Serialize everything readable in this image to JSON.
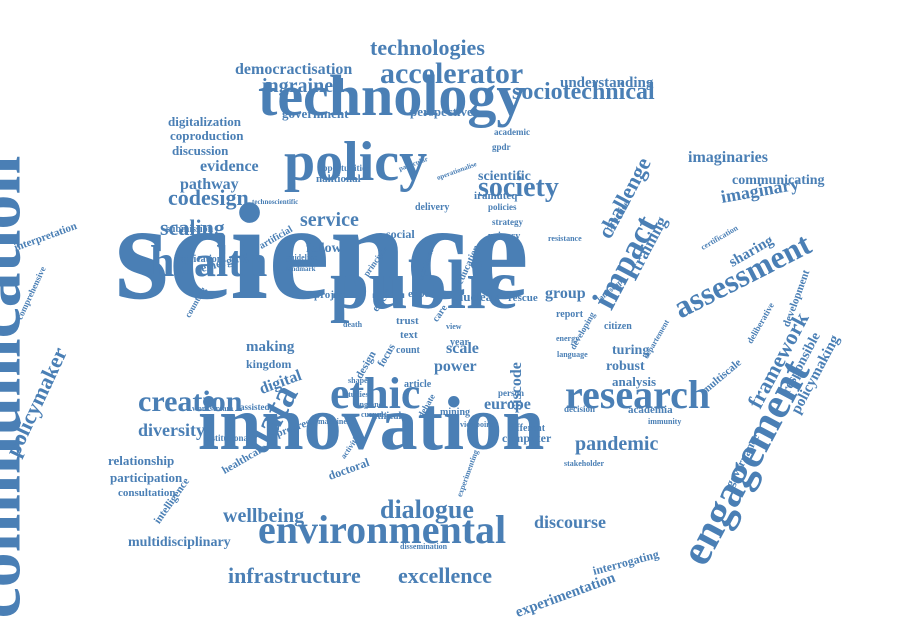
{
  "color": "#4a7fb5",
  "words": [
    {
      "text": "science"
    },
    {
      "text": "innovation"
    },
    {
      "text": "communication"
    },
    {
      "text": "public"
    },
    {
      "text": "technology"
    },
    {
      "text": "policy"
    },
    {
      "text": "engagement"
    },
    {
      "text": "health"
    },
    {
      "text": "ethic"
    },
    {
      "text": "research"
    },
    {
      "text": "environmental"
    },
    {
      "text": "data"
    },
    {
      "text": "assessment"
    },
    {
      "text": "impact"
    },
    {
      "text": "creation"
    },
    {
      "text": "society"
    },
    {
      "text": "accelerator"
    },
    {
      "text": "sociotechnical"
    },
    {
      "text": "technologies"
    },
    {
      "text": "dialogue"
    },
    {
      "text": "infrastructure"
    },
    {
      "text": "excellence"
    },
    {
      "text": "framework"
    },
    {
      "text": "policymaker"
    },
    {
      "text": "challenge"
    },
    {
      "text": "codesign"
    },
    {
      "text": "scaling"
    },
    {
      "text": "service"
    },
    {
      "text": "pandemic"
    },
    {
      "text": "diversity"
    },
    {
      "text": "wellbeing"
    },
    {
      "text": "ingrained"
    },
    {
      "text": "democractisation"
    },
    {
      "text": "evidence"
    },
    {
      "text": "pathway"
    },
    {
      "text": "training"
    },
    {
      "text": "imaginaries"
    },
    {
      "text": "imaginary"
    },
    {
      "text": "communicating"
    },
    {
      "text": "understanding"
    },
    {
      "text": "government"
    },
    {
      "text": "perspective"
    },
    {
      "text": "digitalization"
    },
    {
      "text": "coproduction"
    },
    {
      "text": "discussion"
    },
    {
      "text": "making"
    },
    {
      "text": "digital"
    },
    {
      "text": "kingdom"
    },
    {
      "text": "europe"
    },
    {
      "text": "discourse"
    },
    {
      "text": "experimentation"
    },
    {
      "text": "multidisciplinary"
    },
    {
      "text": "policymaking"
    },
    {
      "text": "responsible"
    },
    {
      "text": "sharing"
    },
    {
      "text": "relationship"
    },
    {
      "text": "participation"
    },
    {
      "text": "consultation"
    },
    {
      "text": "scientific"
    },
    {
      "text": "group"
    },
    {
      "text": "fellow"
    },
    {
      "text": "social"
    },
    {
      "text": "scale"
    },
    {
      "text": "power"
    },
    {
      "text": "turing"
    },
    {
      "text": "robust"
    },
    {
      "text": "analysis"
    },
    {
      "text": "siscode"
    },
    {
      "text": "nuclear"
    },
    {
      "text": "rescue"
    },
    {
      "text": "interrogating"
    },
    {
      "text": "governance"
    },
    {
      "text": "multiscale"
    },
    {
      "text": "interpretation"
    },
    {
      "text": "comprehensive"
    },
    {
      "text": "development"
    },
    {
      "text": "deliberative"
    },
    {
      "text": "doctoral"
    },
    {
      "text": "healthcare"
    },
    {
      "text": "progress"
    },
    {
      "text": "intelligence"
    },
    {
      "text": "academia"
    },
    {
      "text": "computer"
    },
    {
      "text": "different"
    },
    {
      "text": "dissemination"
    },
    {
      "text": "nahtional"
    },
    {
      "text": "opportunities"
    },
    {
      "text": "iramuteq"
    },
    {
      "text": "submission"
    },
    {
      "text": "implication"
    },
    {
      "text": "artificial"
    },
    {
      "text": "emerging"
    },
    {
      "text": "project"
    },
    {
      "text": "expert"
    },
    {
      "text": "education"
    },
    {
      "text": "strategy"
    },
    {
      "text": "delivery"
    },
    {
      "text": "privacy"
    },
    {
      "text": "policies"
    },
    {
      "text": "citizen"
    },
    {
      "text": "report"
    },
    {
      "text": "institutional"
    },
    {
      "text": "workstream"
    },
    {
      "text": "assisted"
    },
    {
      "text": "counting"
    },
    {
      "text": "text"
    },
    {
      "text": "trust"
    },
    {
      "text": "count"
    },
    {
      "text": "year"
    },
    {
      "text": "effect"
    },
    {
      "text": "care"
    },
    {
      "text": "design"
    },
    {
      "text": "focus"
    },
    {
      "text": "article"
    },
    {
      "text": "mining"
    },
    {
      "text": "ethical"
    },
    {
      "text": "person"
    },
    {
      "text": "decision"
    },
    {
      "text": "stakeholder"
    },
    {
      "text": "resistance"
    },
    {
      "text": "landscape"
    },
    {
      "text": "immunity"
    },
    {
      "text": "certification"
    },
    {
      "text": "practice"
    },
    {
      "text": "academic"
    },
    {
      "text": "gpdr"
    },
    {
      "text": "activities"
    },
    {
      "text": "studies"
    },
    {
      "text": "experimenting"
    },
    {
      "text": "debate"
    },
    {
      "text": "shape"
    },
    {
      "text": "particular"
    },
    {
      "text": "departement"
    },
    {
      "text": "guideline"
    },
    {
      "text": "principle"
    },
    {
      "text": "developing"
    },
    {
      "text": "energy"
    },
    {
      "text": "language"
    },
    {
      "text": "viewpoint"
    },
    {
      "text": "view"
    },
    {
      "text": "death"
    },
    {
      "text": "machinery"
    },
    {
      "text": "current"
    },
    {
      "text": "england"
    },
    {
      "text": "continent"
    },
    {
      "text": "landmark"
    },
    {
      "text": "operationalise"
    },
    {
      "text": "technoscientific"
    }
  ]
}
